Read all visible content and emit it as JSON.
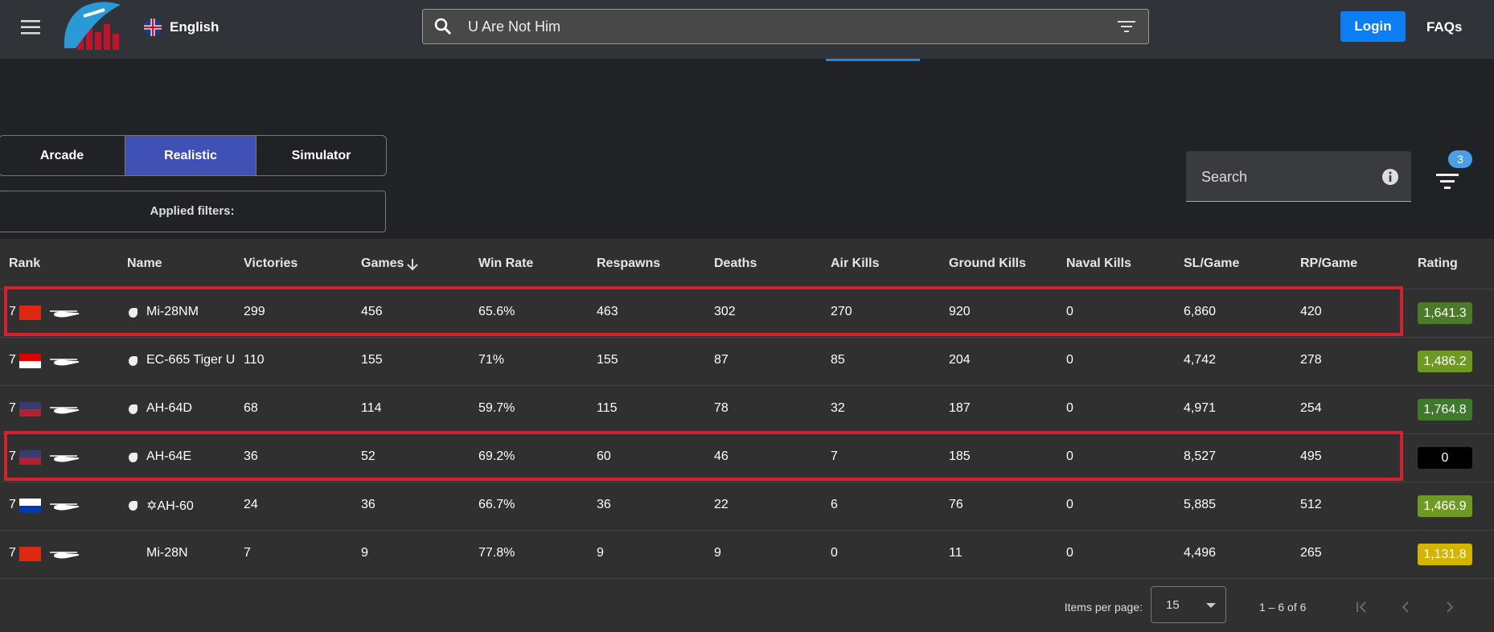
{
  "header": {
    "language": "English",
    "search_query": "U Are Not Him",
    "login": "Login",
    "faqs": "FAQs"
  },
  "modes": {
    "items": [
      "Arcade",
      "Realistic",
      "Simulator"
    ],
    "selected": 1
  },
  "applied_filters": "Applied filters:",
  "search_label": "Search",
  "filter_badge": "3",
  "table": {
    "columns": [
      "Rank",
      "Name",
      "Victories",
      "Games",
      "Win Rate",
      "Respawns",
      "Deaths",
      "Air Kills",
      "Ground Kills",
      "Naval Kills",
      "SL/Game",
      "RP/Game",
      "Rating"
    ],
    "rows": [
      {
        "cells": [
          "7",
          "Mi-28NM",
          "299",
          "456",
          "65.6%",
          "463",
          "302",
          "270",
          "920",
          "0",
          "6,860",
          "420",
          "1,641.3"
        ],
        "rating_color": "#4a7a2a",
        "highlighted": true
      },
      {
        "cells": [
          "7",
          "EC-665 Tiger U",
          "110",
          "155",
          "71%",
          "155",
          "87",
          "85",
          "204",
          "0",
          "4,742",
          "278",
          "1,486.2"
        ],
        "rating_color": "#6e9a24",
        "highlighted": false
      },
      {
        "cells": [
          "7",
          "AH-64D",
          "68",
          "114",
          "59.7%",
          "115",
          "78",
          "32",
          "187",
          "0",
          "4,971",
          "254",
          "1,764.8"
        ],
        "rating_color": "#3f7a2c",
        "highlighted": false
      },
      {
        "cells": [
          "7",
          "AH-64E",
          "36",
          "52",
          "69.2%",
          "60",
          "46",
          "7",
          "185",
          "0",
          "8,527",
          "495",
          "0"
        ],
        "rating_color": "#000000",
        "highlighted": true
      },
      {
        "cells": [
          "7",
          "✡AH-60",
          "24",
          "36",
          "66.7%",
          "36",
          "22",
          "6",
          "76",
          "0",
          "5,885",
          "512",
          "1,466.9"
        ],
        "rating_color": "#6e9a24",
        "highlighted": false
      },
      {
        "cells": [
          "7",
          "Mi-28N",
          "7",
          "9",
          "77.8%",
          "9",
          "9",
          "0",
          "11",
          "0",
          "4,496",
          "265",
          "1,131.8"
        ],
        "rating_color": "#d4b400",
        "highlighted": false
      }
    ]
  },
  "pagination": {
    "items_per_page_label": "Items per page:",
    "items_per_page": "15",
    "range": "1 – 6 of 6"
  }
}
